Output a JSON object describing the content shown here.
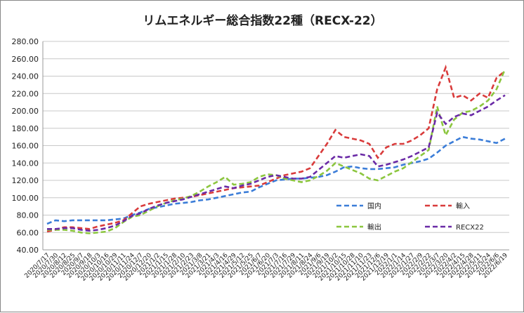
{
  "chart_data": {
    "type": "line",
    "title": "リムエネルギー総合指数22種（RECX-22）",
    "xlabel": "",
    "ylabel": "",
    "ylim": [
      40,
      280
    ],
    "yticks": [
      "40.00",
      "60.00",
      "80.00",
      "100.00",
      "120.00",
      "140.00",
      "160.00",
      "180.00",
      "200.00",
      "220.00",
      "240.00",
      "260.00",
      "280.00"
    ],
    "grid": true,
    "legend_placement": "lower-right",
    "categories": [
      "2020/7/17",
      "2020/7/30",
      "2020/8/12",
      "2020/8/25",
      "2020/9/7",
      "2020/9/18",
      "2020/10/3",
      "2020/10/16",
      "2020/10/29",
      "2020/11/11",
      "2020/11/24",
      "2020/12/7",
      "2020/12/20",
      "2021/1/2",
      "2021/1/15",
      "2021/1/28",
      "2021/2/10",
      "2021/2/23",
      "2021/3/8",
      "2021/3/21",
      "2021/4/3",
      "2021/4/16",
      "2021/4/29",
      "2021/5/12",
      "2021/5/25",
      "2021/6/7",
      "2021/6/20",
      "2021/7/3",
      "2021/7/16",
      "2021/7/29",
      "2021/8/11",
      "2021/8/24",
      "2021/9/6",
      "2021/9/19",
      "2021/10/2",
      "2021/10/15",
      "2021/10/28",
      "2021/11/10",
      "2021/11/23",
      "2021/12/6",
      "2021/12/19",
      "2022/1/1",
      "2022/1/14",
      "2022/1/27",
      "2022/2/9",
      "2022/2/22",
      "2022/3/7",
      "2022/3/20",
      "2022/4/2",
      "2022/4/15",
      "2022/4/28",
      "2022/5/11",
      "2022/5/24",
      "2022/6/6",
      "2022/6/19"
    ],
    "series": [
      {
        "name": "国内",
        "color": "#3b7dd8",
        "values": [
          70,
          74,
          73,
          74,
          74,
          74,
          74,
          74,
          75,
          76,
          80,
          83,
          87,
          89,
          91,
          93,
          94,
          95,
          97,
          98,
          100,
          102,
          104,
          106,
          107,
          112,
          116,
          120,
          121,
          122,
          122,
          123,
          124,
          126,
          130,
          135,
          136,
          134,
          133,
          133,
          134,
          135,
          138,
          140,
          142,
          145,
          152,
          160,
          165,
          170,
          168,
          167,
          165,
          163,
          168
        ]
      },
      {
        "name": "輸入",
        "color": "#d93b3b",
        "values": [
          61,
          63,
          66,
          66,
          65,
          64,
          67,
          69,
          71,
          74,
          82,
          90,
          93,
          95,
          97,
          99,
          100,
          101,
          103,
          105,
          107,
          109,
          111,
          112,
          113,
          114,
          118,
          122,
          126,
          128,
          130,
          134,
          148,
          162,
          178,
          170,
          168,
          166,
          162,
          146,
          158,
          162,
          162,
          166,
          172,
          180,
          225,
          250,
          215,
          218,
          212,
          220,
          215,
          238,
          246
        ]
      },
      {
        "name": "輸出",
        "color": "#8cc63f",
        "values": [
          63,
          63,
          63,
          62,
          60,
          59,
          60,
          61,
          65,
          72,
          78,
          80,
          85,
          90,
          94,
          97,
          99,
          102,
          107,
          113,
          118,
          124,
          115,
          116,
          118,
          124,
          127,
          126,
          122,
          120,
          118,
          120,
          125,
          131,
          140,
          136,
          132,
          128,
          122,
          120,
          125,
          130,
          134,
          141,
          148,
          155,
          205,
          172,
          190,
          198,
          200,
          205,
          212,
          225,
          248
        ]
      },
      {
        "name": "RECX22",
        "color": "#6a2aa6",
        "values": [
          64,
          64,
          65,
          65,
          63,
          62,
          63,
          65,
          68,
          73,
          79,
          82,
          87,
          91,
          94,
          96,
          98,
          101,
          104,
          107,
          110,
          113,
          111,
          114,
          116,
          120,
          124,
          126,
          124,
          122,
          122,
          124,
          132,
          140,
          148,
          146,
          148,
          150,
          148,
          136,
          138,
          141,
          144,
          148,
          153,
          158,
          198,
          185,
          193,
          197,
          195,
          200,
          205,
          212,
          218
        ]
      }
    ]
  }
}
